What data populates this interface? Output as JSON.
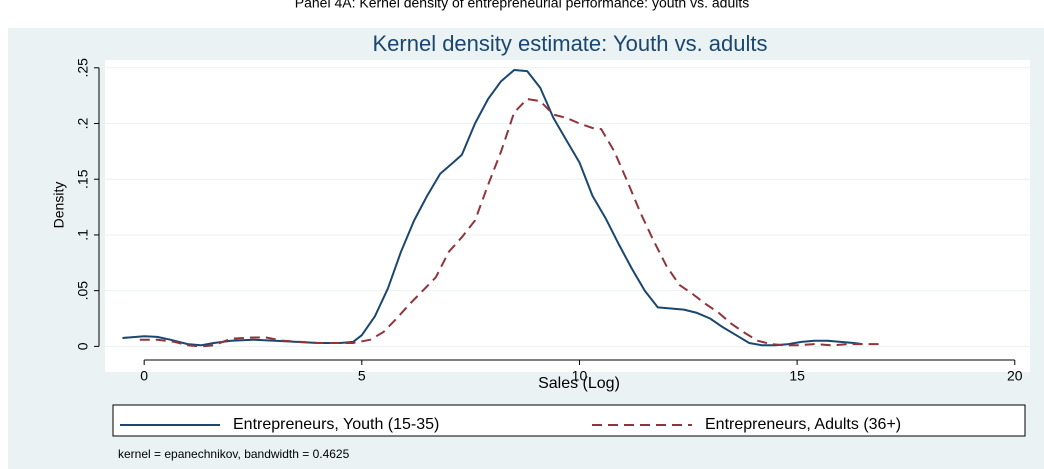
{
  "header": {
    "title": "Panel 4A: Kernel density of entrepreneurial performance: youth vs. adults"
  },
  "chart_data": {
    "type": "line",
    "title": "Kernel density estimate: Youth vs. adults",
    "x_label": "Sales (Log)",
    "y_label": "Density",
    "note": "kernel = epanechnikov, bandwidth = 0.4625",
    "xlim": [
      -0.9,
      20.35
    ],
    "xticks": [
      0,
      5,
      10,
      15,
      20
    ],
    "ylim": [
      -0.023,
      0.257
    ],
    "yticks": [
      {
        "value": 0,
        "label": "0"
      },
      {
        "value": 0.05,
        "label": ".05"
      },
      {
        "value": 0.1,
        "label": ".1"
      },
      {
        "value": 0.15,
        "label": ".15"
      },
      {
        "value": 0.2,
        "label": ".2"
      },
      {
        "value": 0.25,
        "label": ".25"
      }
    ],
    "grid": true,
    "series": [
      {
        "name": "Entrepreneurs, Youth (15-35)",
        "color": "#1a476f",
        "dash": "solid",
        "x": [
          -0.5,
          0,
          0.3,
          0.6,
          1,
          1.3,
          1.6,
          2,
          2.5,
          3,
          3.5,
          4,
          4.5,
          4.8,
          5,
          5.3,
          5.6,
          5.9,
          6.2,
          6.5,
          6.8,
          7.1,
          7.3,
          7.6,
          7.9,
          8.2,
          8.5,
          8.8,
          9.1,
          9.4,
          9.7,
          10,
          10.3,
          10.6,
          10.9,
          11.2,
          11.5,
          11.8,
          12.1,
          12.4,
          12.7,
          13,
          13.3,
          13.6,
          13.9,
          14.2,
          14.5,
          14.8,
          15.1,
          15.4,
          15.7,
          16,
          16.3,
          16.5
        ],
        "values": [
          0.0075,
          0.009,
          0.0085,
          0.006,
          0.002,
          0.001,
          0.003,
          0.005,
          0.006,
          0.005,
          0.004,
          0.003,
          0.003,
          0.004,
          0.01,
          0.027,
          0.052,
          0.085,
          0.113,
          0.135,
          0.155,
          0.165,
          0.172,
          0.2,
          0.222,
          0.238,
          0.248,
          0.247,
          0.232,
          0.205,
          0.185,
          0.165,
          0.135,
          0.115,
          0.092,
          0.07,
          0.05,
          0.035,
          0.034,
          0.033,
          0.03,
          0.025,
          0.017,
          0.01,
          0.003,
          0.001,
          0.001,
          0.002,
          0.004,
          0.005,
          0.005,
          0.004,
          0.003,
          0.002
        ]
      },
      {
        "name": "Entrepreneurs, Adults (36+)",
        "color": "#90353b",
        "dash": "dashed",
        "x": [
          -0.1,
          0.3,
          0.7,
          1,
          1.3,
          1.6,
          2,
          2.5,
          2.8,
          3.2,
          3.6,
          4,
          4.5,
          4.8,
          5.2,
          5.5,
          5.8,
          6.1,
          6.4,
          6.7,
          7,
          7.3,
          7.6,
          7.9,
          8.2,
          8.5,
          8.8,
          9.1,
          9.4,
          9.7,
          10,
          10.3,
          10.5,
          10.8,
          11.1,
          11.4,
          11.7,
          12,
          12.3,
          12.6,
          12.9,
          13.2,
          13.5,
          13.8,
          14.1,
          14.4,
          14.7,
          15,
          15.4,
          15.8,
          16.2,
          16.6,
          16.9
        ],
        "values": [
          0.006,
          0.006,
          0.004,
          0.001,
          0,
          0.001,
          0.007,
          0.008,
          0.008,
          0.005,
          0.004,
          0.003,
          0.003,
          0.003,
          0.006,
          0.013,
          0.025,
          0.038,
          0.05,
          0.062,
          0.085,
          0.098,
          0.113,
          0.145,
          0.175,
          0.21,
          0.222,
          0.22,
          0.208,
          0.205,
          0.2,
          0.196,
          0.195,
          0.175,
          0.148,
          0.12,
          0.095,
          0.072,
          0.055,
          0.047,
          0.038,
          0.03,
          0.02,
          0.012,
          0.005,
          0.002,
          0.001,
          0.001,
          0.002,
          0.001,
          0.002,
          0.002,
          0.002
        ]
      }
    ]
  }
}
